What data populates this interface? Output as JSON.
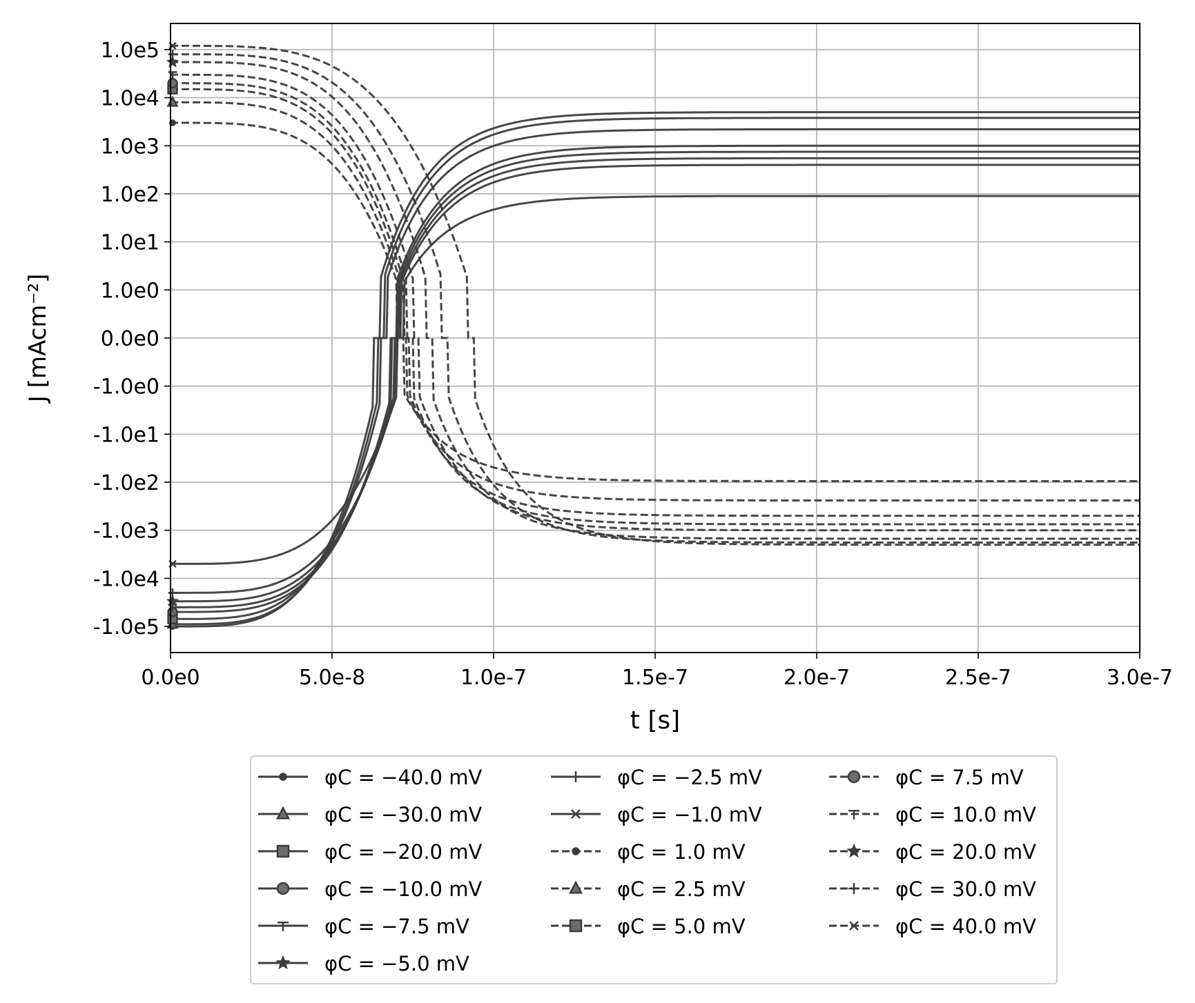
{
  "chart_data": {
    "type": "line",
    "title": "",
    "xlabel": "t [s]",
    "ylabel": "J [mAcm⁻²]",
    "xlim": [
      0,
      3e-07
    ],
    "yscale": "symlog",
    "ylim": [
      -350000,
      350000
    ],
    "grid": true,
    "line_color": "#3d3d3d",
    "x_ticks": [
      {
        "value": 0,
        "label": "0.0e0"
      },
      {
        "value": 5e-08,
        "label": "5.0e-8"
      },
      {
        "value": 1e-07,
        "label": "1.0e-7"
      },
      {
        "value": 1.5e-07,
        "label": "1.5e-7"
      },
      {
        "value": 2e-07,
        "label": "2.0e-7"
      },
      {
        "value": 2.5e-07,
        "label": "2.5e-7"
      },
      {
        "value": 3e-07,
        "label": "3.0e-7"
      }
    ],
    "y_ticks": [
      {
        "value": 100000,
        "label": "1.0e5"
      },
      {
        "value": 10000,
        "label": "1.0e4"
      },
      {
        "value": 1000,
        "label": "1.0e3"
      },
      {
        "value": 100,
        "label": "1.0e2"
      },
      {
        "value": 10,
        "label": "1.0e1"
      },
      {
        "value": 1,
        "label": "1.0e0"
      },
      {
        "value": 0,
        "label": "0.0e0"
      },
      {
        "value": -1,
        "label": "-1.0e0"
      },
      {
        "value": -10,
        "label": "-1.0e1"
      },
      {
        "value": -100,
        "label": "-1.0e2"
      },
      {
        "value": -1000,
        "label": "-1.0e3"
      },
      {
        "value": -10000,
        "label": "-1.0e4"
      },
      {
        "value": -100000,
        "label": "-1.0e5"
      }
    ],
    "legend": {
      "placement": "below",
      "columns": 3
    },
    "series": [
      {
        "name": "φC = −40.0 mV",
        "style": "solid",
        "marker": "dot",
        "start": -100000,
        "switch_t": 6.4e-08,
        "end": 5000
      },
      {
        "name": "φC = −30.0 mV",
        "style": "solid",
        "marker": "triangle",
        "start": -90000,
        "switch_t": 6.5e-08,
        "end": 3800
      },
      {
        "name": "φC = −20.0 mV",
        "style": "solid",
        "marker": "square",
        "start": -70000,
        "switch_t": 6.6e-08,
        "end": 2200
      },
      {
        "name": "φC = −10.0 mV",
        "style": "solid",
        "marker": "circle",
        "start": -50000,
        "switch_t": 6.9e-08,
        "end": 1000
      },
      {
        "name": "φC = −7.5 mV",
        "style": "solid",
        "marker": "tri_down",
        "start": -40000,
        "switch_t": 6.95e-08,
        "end": 750
      },
      {
        "name": "φC = −5.0 mV",
        "style": "solid",
        "marker": "star",
        "start": -30000,
        "switch_t": 7e-08,
        "end": 550
      },
      {
        "name": "φC = −2.5 mV",
        "style": "solid",
        "marker": "plus",
        "start": -20000,
        "switch_t": 7.05e-08,
        "end": 400
      },
      {
        "name": "φC = −1.0 mV",
        "style": "solid",
        "marker": "x",
        "start": -5000,
        "switch_t": 7.1e-08,
        "end": 90
      },
      {
        "name": "φC = 1.0 mV",
        "style": "dashed",
        "marker": "dot",
        "start": 3000,
        "switch_t": 7.1e-08,
        "end": -95
      },
      {
        "name": "φC = 2.5 mV",
        "style": "dashed",
        "marker": "triangle",
        "start": 8000,
        "switch_t": 7.2e-08,
        "end": -240
      },
      {
        "name": "φC = 5.0 mV",
        "style": "dashed",
        "marker": "square",
        "start": 15000,
        "switch_t": 7.3e-08,
        "end": -500
      },
      {
        "name": "φC = 7.5 mV",
        "style": "dashed",
        "marker": "circle",
        "start": 20000,
        "switch_t": 7.4e-08,
        "end": -750
      },
      {
        "name": "φC = 10.0 mV",
        "style": "dashed",
        "marker": "tri_down",
        "start": 30000,
        "switch_t": 7.6e-08,
        "end": -1000
      },
      {
        "name": "φC = 20.0 mV",
        "style": "dashed",
        "marker": "star",
        "start": 55000,
        "switch_t": 8e-08,
        "end": -1500
      },
      {
        "name": "φC = 30.0 mV",
        "style": "dashed",
        "marker": "plus",
        "start": 80000,
        "switch_t": 8.5e-08,
        "end": -1800
      },
      {
        "name": "φC = 40.0 mV",
        "style": "dashed",
        "marker": "x",
        "start": 120000,
        "switch_t": 9.3e-08,
        "end": -2000
      }
    ]
  }
}
